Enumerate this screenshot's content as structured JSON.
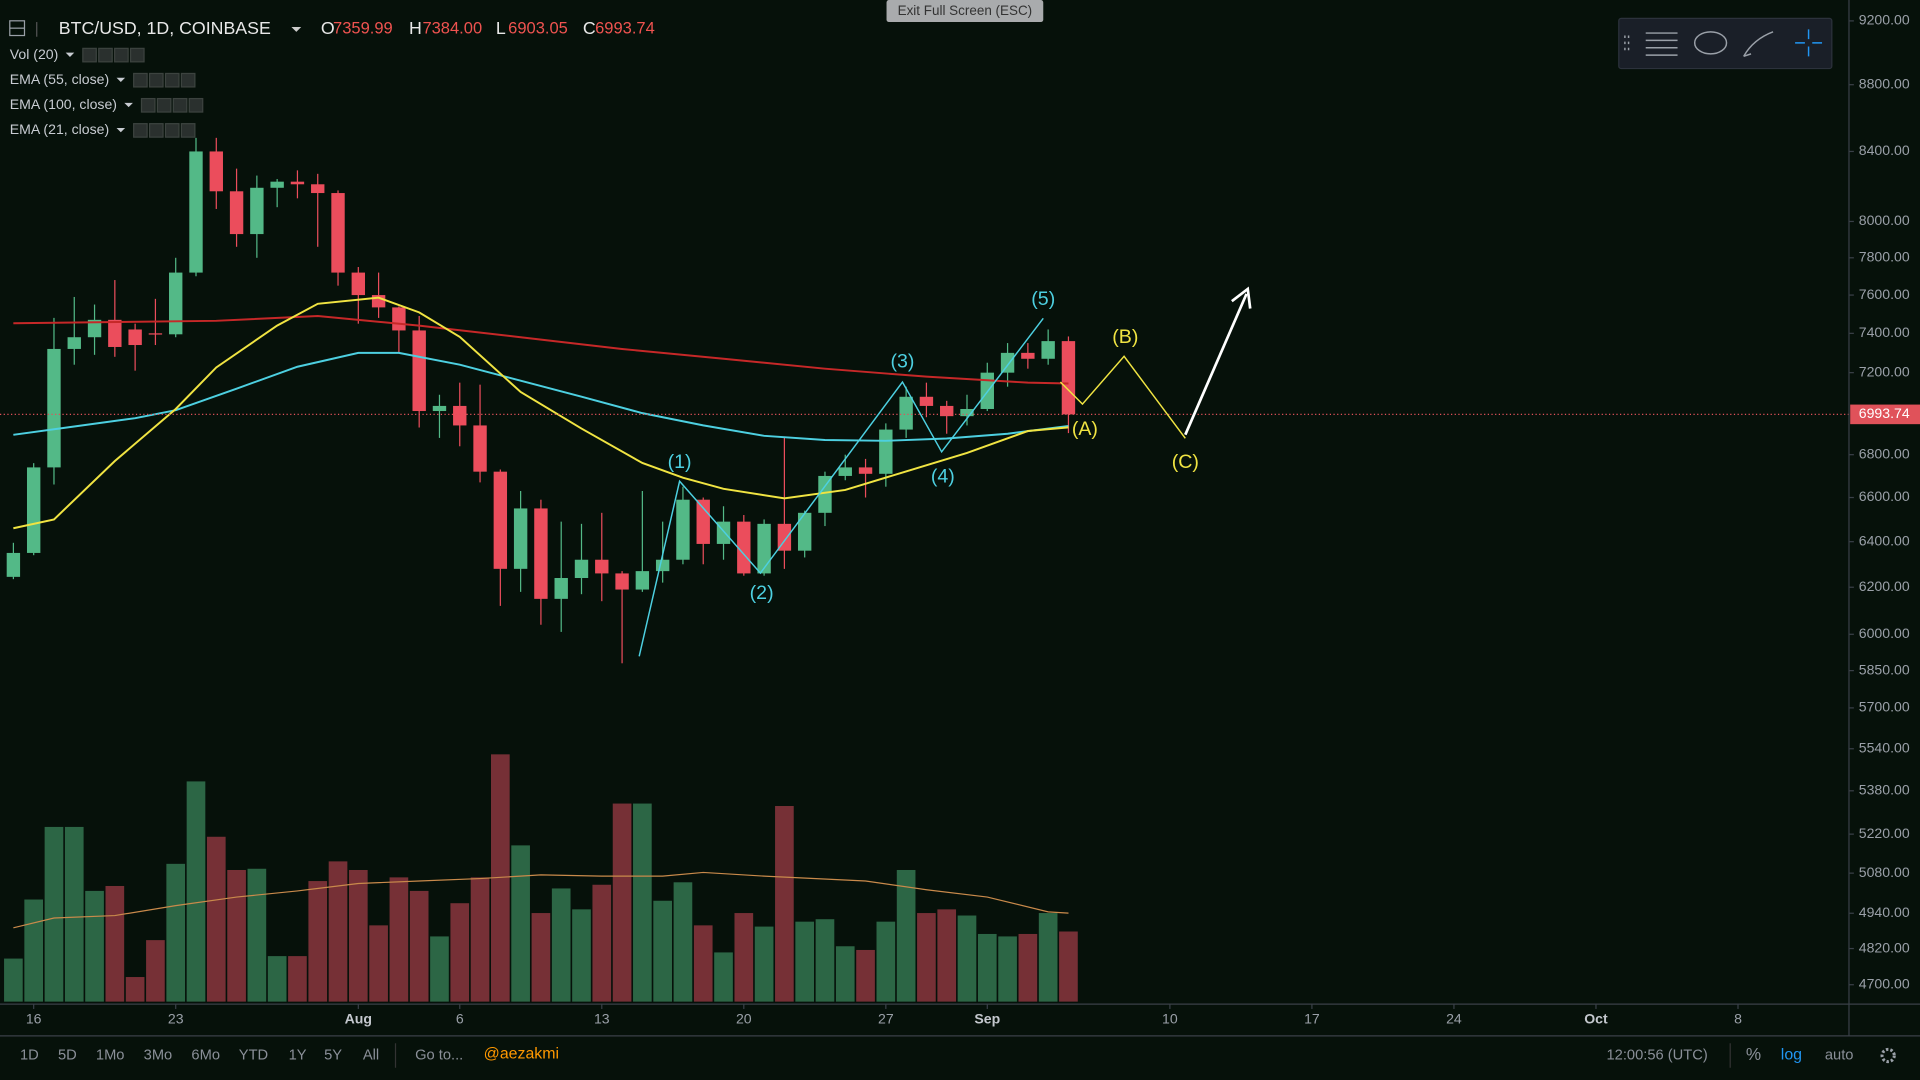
{
  "header": {
    "symbol": "BTC/USD, 1D, COINBASE",
    "ohlc": [
      {
        "key": "O",
        "value": "7359.99"
      },
      {
        "key": "H",
        "value": "7384.00"
      },
      {
        "key": "L",
        "value": "6903.05"
      },
      {
        "key": "C",
        "value": "6993.74"
      }
    ]
  },
  "fullscreen_button": "Exit Full Screen (ESC)",
  "chart_data": {
    "type": "candlestick",
    "log_scale": true,
    "grid": false,
    "up_color": "#53b987",
    "down_color": "#eb4d5c",
    "volume_up_color": "#2c6645",
    "volume_down_color": "#763036",
    "xlim": [
      -0.66,
      90.47
    ],
    "xticks": [
      {
        "value": 1,
        "label": "16"
      },
      {
        "value": 8,
        "label": "23"
      },
      {
        "value": 17,
        "label": "Aug"
      },
      {
        "value": 22,
        "label": "6"
      },
      {
        "value": 29,
        "label": "13"
      },
      {
        "value": 36,
        "label": "20"
      },
      {
        "value": 43,
        "label": "27"
      },
      {
        "value": 48,
        "label": "Sep"
      },
      {
        "value": 57,
        "label": "10"
      },
      {
        "value": 64,
        "label": "17"
      },
      {
        "value": 71,
        "label": "24"
      },
      {
        "value": 78,
        "label": "Oct"
      },
      {
        "value": 85,
        "label": "8"
      }
    ],
    "ylim": [
      4637,
      9335
    ],
    "yticks": [
      {
        "value": 9200,
        "label": "9200.00"
      },
      {
        "value": 8800,
        "label": "8800.00"
      },
      {
        "value": 8400,
        "label": "8400.00"
      },
      {
        "value": 8000,
        "label": "8000.00"
      },
      {
        "value": 7800,
        "label": "7800.00"
      },
      {
        "value": 7600,
        "label": "7600.00"
      },
      {
        "value": 7400,
        "label": "7400.00"
      },
      {
        "value": 7200,
        "label": "7200.00"
      },
      {
        "value": 6800,
        "label": "6800.00"
      },
      {
        "value": 6600,
        "label": "6600.00"
      },
      {
        "value": 6400,
        "label": "6400.00"
      },
      {
        "value": 6200,
        "label": "6200.00"
      },
      {
        "value": 6000,
        "label": "6000.00"
      },
      {
        "value": 5850,
        "label": "5850.00"
      },
      {
        "value": 5700,
        "label": "5700.00"
      },
      {
        "value": 5540,
        "label": "5540.00"
      },
      {
        "value": 5380,
        "label": "5380.00"
      },
      {
        "value": 5220,
        "label": "5220.00"
      },
      {
        "value": 5080,
        "label": "5080.00"
      },
      {
        "value": 4940,
        "label": "4940.00"
      },
      {
        "value": 4820,
        "label": "4820.00"
      },
      {
        "value": 4700,
        "label": "4700.00"
      }
    ],
    "vlim": [
      0,
      21000
    ],
    "last_price": 6993.74,
    "last_price_color": "#e0525a",
    "open": [
      6245,
      6350,
      6740,
      7320,
      7380,
      7470,
      7420,
      7400,
      7395,
      7720,
      8400,
      8170,
      7930,
      8190,
      8225,
      8210,
      8160,
      7720,
      7600,
      7535,
      7415,
      7010,
      7035,
      6940,
      6720,
      6280,
      6550,
      6150,
      6240,
      6320,
      6260,
      6190,
      6270,
      6320,
      6590,
      6390,
      6490,
      6260,
      6480,
      6360,
      6530,
      6700,
      6740,
      6710,
      6920,
      7080,
      7035,
      6985,
      7020,
      7200,
      7300,
      7270,
      7359.99
    ],
    "high": [
      6395,
      6760,
      7480,
      7590,
      7550,
      7680,
      7450,
      7580,
      7800,
      8480,
      8480,
      8300,
      8260,
      8240,
      8290,
      8270,
      8175,
      7750,
      7720,
      7540,
      7490,
      7090,
      7150,
      7140,
      6730,
      6630,
      6590,
      6490,
      6480,
      6530,
      6270,
      6630,
      6490,
      6650,
      6600,
      6560,
      6520,
      6500,
      6880,
      6540,
      6720,
      6800,
      6780,
      6950,
      7130,
      7150,
      7060,
      7090,
      7250,
      7350,
      7350,
      7420,
      7384.0
    ],
    "low": [
      6235,
      6340,
      6660,
      7240,
      7290,
      7280,
      7210,
      7340,
      7380,
      7700,
      8070,
      7860,
      7800,
      8080,
      8130,
      7860,
      7650,
      7450,
      7480,
      7300,
      6930,
      6880,
      6840,
      6670,
      6120,
      6180,
      6040,
      6010,
      6170,
      6140,
      5880,
      6180,
      6220,
      6300,
      6300,
      6320,
      6250,
      6250,
      6280,
      6330,
      6470,
      6680,
      6600,
      6650,
      6880,
      6980,
      6900,
      6940,
      7010,
      7130,
      7220,
      7240,
      6903.05
    ],
    "close": [
      6350,
      6740,
      7320,
      7380,
      7470,
      7330,
      7340,
      7395,
      7720,
      8400,
      8170,
      7930,
      8190,
      8225,
      8210,
      8160,
      7720,
      7600,
      7535,
      7415,
      7010,
      7035,
      6940,
      6720,
      6280,
      6550,
      6150,
      6240,
      6320,
      6260,
      6190,
      6270,
      6320,
      6590,
      6390,
      6490,
      6260,
      6480,
      6360,
      6530,
      6700,
      6740,
      6710,
      6920,
      7080,
      7035,
      6985,
      7020,
      7200,
      7300,
      7270,
      7360,
      6993.74
    ],
    "volume": [
      3500,
      8300,
      14200,
      14200,
      9000,
      9400,
      2000,
      5000,
      11200,
      17900,
      13400,
      10700,
      10800,
      3700,
      3700,
      9800,
      11400,
      10700,
      6200,
      10100,
      9000,
      5300,
      8000,
      10100,
      20100,
      12700,
      7200,
      9200,
      7500,
      9500,
      16100,
      16100,
      8200,
      9700,
      6200,
      4000,
      7200,
      6100,
      15900,
      6500,
      6700,
      4500,
      4200,
      6500,
      10700,
      7200,
      7500,
      7000,
      5500,
      5300,
      5500,
      7200,
      5700
    ],
    "indicators": [
      {
        "name": "Vol (20)",
        "axis": "volume",
        "color": "#c98a4b",
        "x": [
          0,
          2,
          5,
          8,
          11,
          14,
          17,
          20,
          23,
          26,
          29,
          32,
          34,
          37,
          42,
          45,
          48,
          51,
          52
        ],
        "values": [
          6000,
          6800,
          7000,
          7800,
          8500,
          9000,
          9600,
          9800,
          10000,
          10300,
          10200,
          10200,
          10500,
          10200,
          9800,
          9100,
          8500,
          7300,
          7200
        ]
      },
      {
        "name": "EMA (55, close)",
        "axis": "price",
        "color": "#4dd0e1",
        "x": [
          0,
          3,
          6,
          8,
          11,
          14,
          17,
          19,
          22,
          25,
          28,
          31,
          34,
          37,
          40,
          43,
          46,
          49,
          52
        ],
        "values": [
          6895,
          6935,
          6975,
          7014,
          7120,
          7230,
          7300,
          7300,
          7240,
          7160,
          7080,
          7000,
          6940,
          6890,
          6870,
          6866,
          6877,
          6900,
          6937
        ]
      },
      {
        "name": "EMA (100, close)",
        "axis": "price",
        "color": "#c62828",
        "x": [
          0,
          10,
          15,
          20,
          25,
          30,
          35,
          40,
          45,
          50,
          52
        ],
        "values": [
          7452,
          7465,
          7490,
          7440,
          7380,
          7320,
          7270,
          7220,
          7180,
          7150,
          7146
        ]
      },
      {
        "name": "EMA (21, close)",
        "axis": "price",
        "color": "#f0e442",
        "x": [
          0,
          2,
          5,
          8,
          10,
          13,
          15,
          18,
          20,
          22,
          25,
          28,
          31,
          33,
          35,
          38,
          41,
          44,
          47,
          50,
          52
        ],
        "values": [
          6460,
          6500,
          6770,
          7020,
          7226,
          7440,
          7554,
          7586,
          7509,
          7382,
          7104,
          6925,
          6761,
          6692,
          6640,
          6596,
          6635,
          6721,
          6808,
          6913,
          6931
        ]
      }
    ],
    "waves": {
      "impulse": [
        "(1)",
        "(2)",
        "(3)",
        "(4)",
        "(5)"
      ],
      "impulse_color": "#4dd0e1",
      "corrective": [
        "(A)",
        "(B)",
        "(C)"
      ],
      "corrective_color": "#f0e442"
    }
  },
  "toolbar": {
    "ranges": [
      "1D",
      "5D",
      "1Mo",
      "3Mo",
      "6Mo",
      "YTD",
      "1Y",
      "5Y",
      "All"
    ],
    "goto": "Go to...",
    "user": "@aezakmi",
    "clock": "12:00:56 (UTC)",
    "percent": "%",
    "log": "log",
    "auto": "auto"
  }
}
